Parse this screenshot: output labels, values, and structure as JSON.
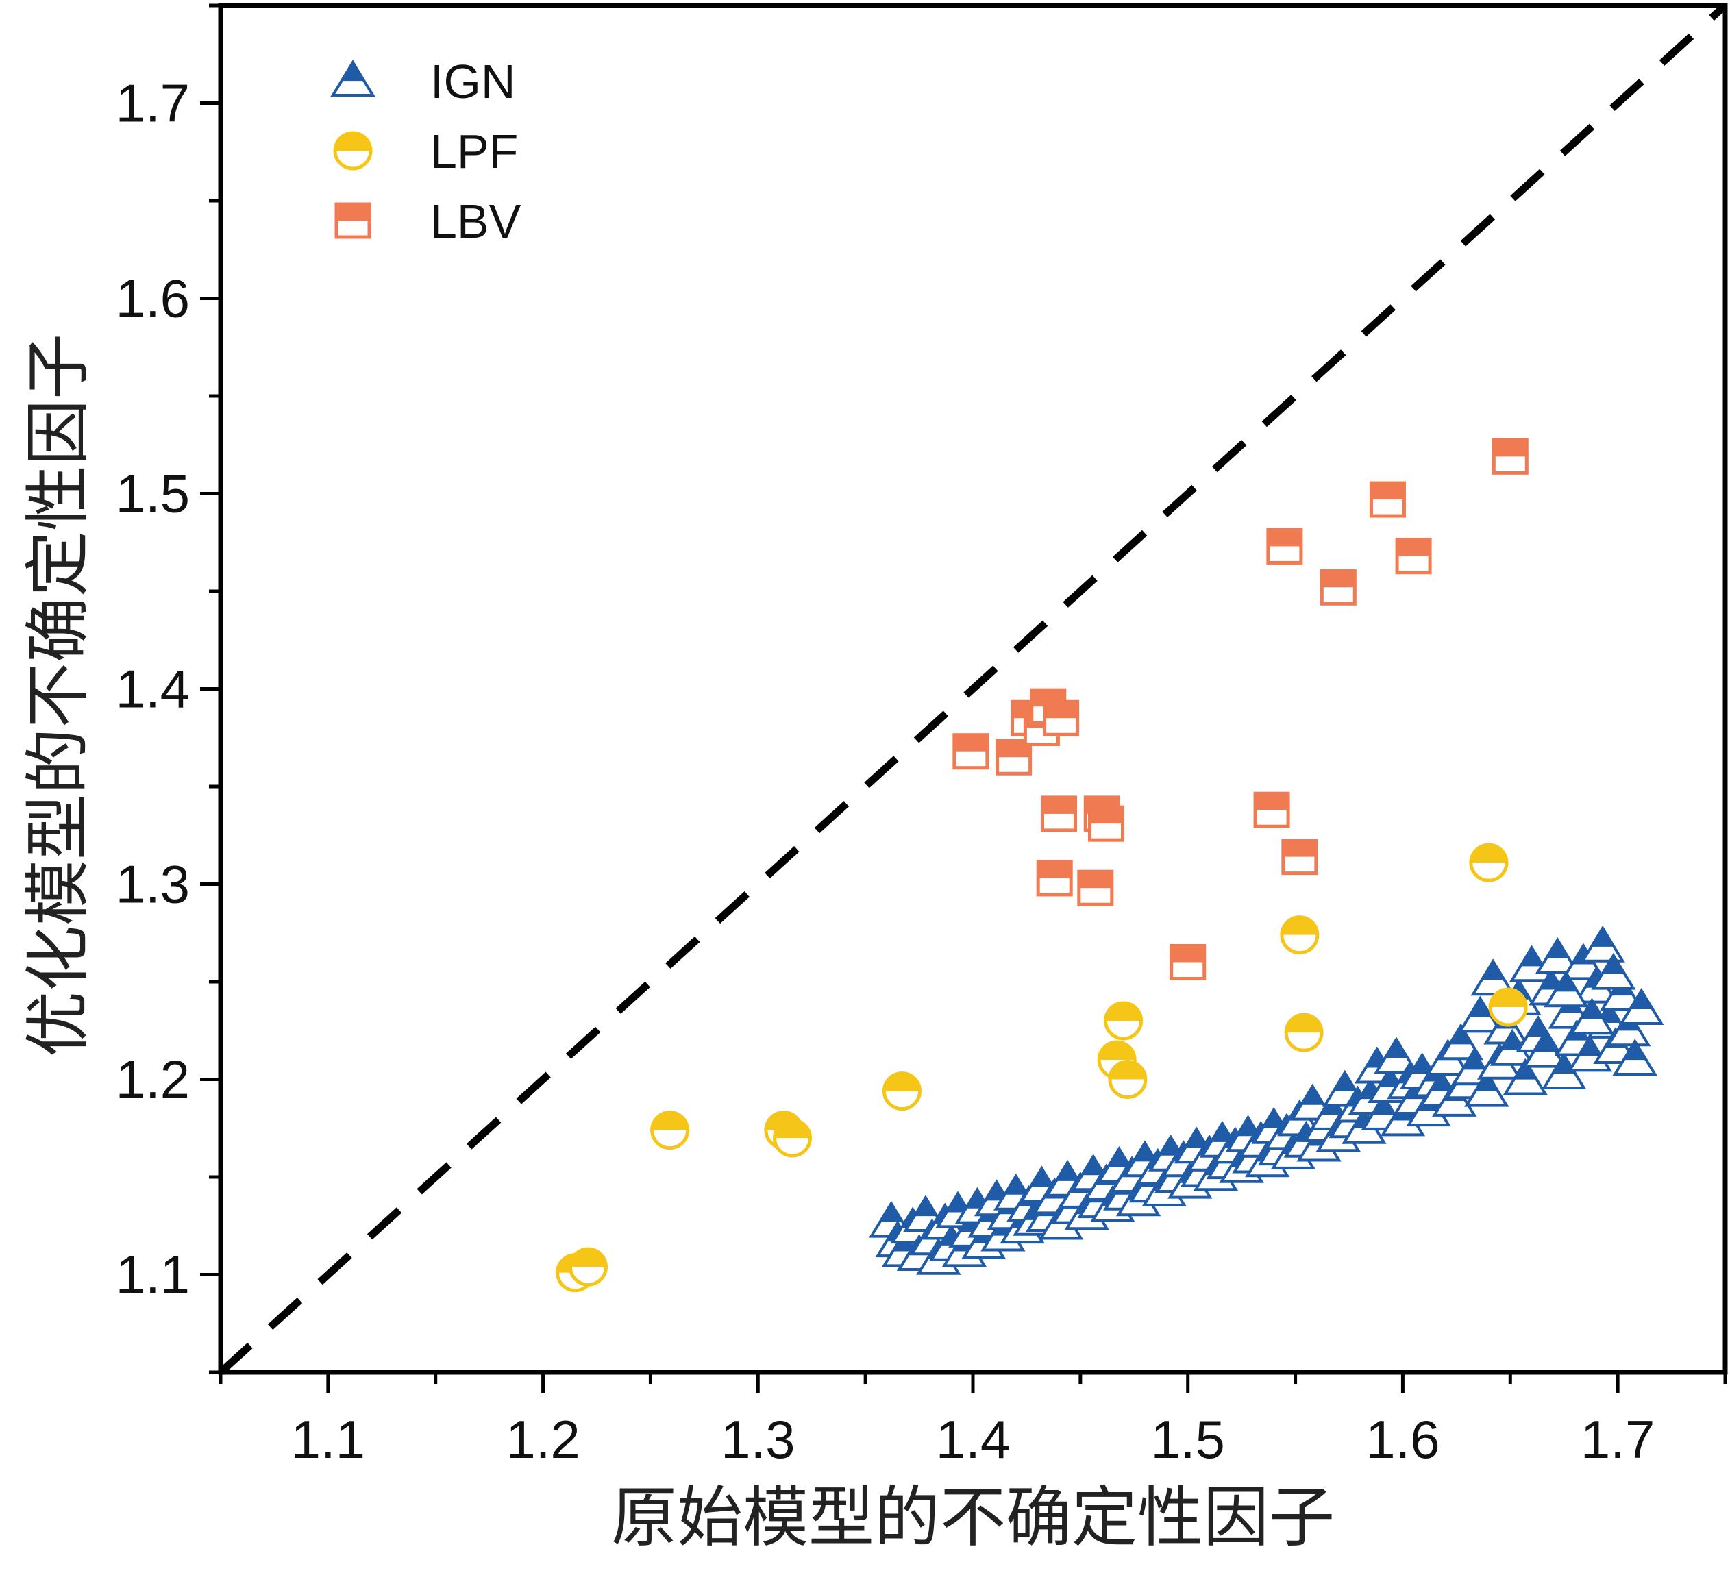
{
  "chart_data": {
    "type": "scatter",
    "title": "",
    "xlabel": "原始模型的不确定性因子",
    "ylabel": "优化模型的不确定性因子",
    "xlim": [
      1.05,
      1.75
    ],
    "ylim": [
      1.05,
      1.75
    ],
    "xticks": [
      "1.1",
      "1.2",
      "1.3",
      "1.4",
      "1.5",
      "1.6",
      "1.7"
    ],
    "yticks": [
      "1.1",
      "1.2",
      "1.3",
      "1.4",
      "1.5",
      "1.6",
      "1.7"
    ],
    "grid": false,
    "legend_position": "top-left",
    "reference_line": {
      "style": "dashed",
      "from": [
        1.05,
        1.05
      ],
      "to": [
        1.75,
        1.75
      ],
      "color": "#000000"
    },
    "series": [
      {
        "name": "IGN",
        "marker": "triangle",
        "color": "#1f5ba6",
        "points": [
          [
            1.362,
            1.127
          ],
          [
            1.365,
            1.117
          ],
          [
            1.368,
            1.112
          ],
          [
            1.372,
            1.124
          ],
          [
            1.375,
            1.11
          ],
          [
            1.378,
            1.13
          ],
          [
            1.381,
            1.118
          ],
          [
            1.384,
            1.108
          ],
          [
            1.387,
            1.126
          ],
          [
            1.39,
            1.115
          ],
          [
            1.393,
            1.132
          ],
          [
            1.396,
            1.112
          ],
          [
            1.399,
            1.122
          ],
          [
            1.402,
            1.134
          ],
          [
            1.405,
            1.116
          ],
          [
            1.408,
            1.127
          ],
          [
            1.411,
            1.138
          ],
          [
            1.414,
            1.12
          ],
          [
            1.417,
            1.131
          ],
          [
            1.42,
            1.141
          ],
          [
            1.423,
            1.124
          ],
          [
            1.426,
            1.135
          ],
          [
            1.429,
            1.128
          ],
          [
            1.432,
            1.145
          ],
          [
            1.435,
            1.13
          ],
          [
            1.438,
            1.139
          ],
          [
            1.441,
            1.126
          ],
          [
            1.444,
            1.148
          ],
          [
            1.447,
            1.134
          ],
          [
            1.45,
            1.142
          ],
          [
            1.453,
            1.131
          ],
          [
            1.456,
            1.151
          ],
          [
            1.459,
            1.137
          ],
          [
            1.462,
            1.146
          ],
          [
            1.465,
            1.135
          ],
          [
            1.468,
            1.155
          ],
          [
            1.471,
            1.141
          ],
          [
            1.474,
            1.15
          ],
          [
            1.477,
            1.138
          ],
          [
            1.48,
            1.158
          ],
          [
            1.483,
            1.145
          ],
          [
            1.486,
            1.154
          ],
          [
            1.489,
            1.143
          ],
          [
            1.492,
            1.161
          ],
          [
            1.495,
            1.15
          ],
          [
            1.498,
            1.158
          ],
          [
            1.501,
            1.147
          ],
          [
            1.504,
            1.165
          ],
          [
            1.507,
            1.153
          ],
          [
            1.51,
            1.161
          ],
          [
            1.513,
            1.151
          ],
          [
            1.516,
            1.168
          ],
          [
            1.519,
            1.157
          ],
          [
            1.522,
            1.165
          ],
          [
            1.525,
            1.155
          ],
          [
            1.528,
            1.171
          ],
          [
            1.531,
            1.16
          ],
          [
            1.534,
            1.168
          ],
          [
            1.537,
            1.158
          ],
          [
            1.54,
            1.175
          ],
          [
            1.543,
            1.164
          ],
          [
            1.546,
            1.172
          ],
          [
            1.549,
            1.162
          ],
          [
            1.552,
            1.179
          ],
          [
            1.555,
            1.168
          ],
          [
            1.558,
            1.187
          ],
          [
            1.561,
            1.166
          ],
          [
            1.564,
            1.176
          ],
          [
            1.567,
            1.182
          ],
          [
            1.57,
            1.171
          ],
          [
            1.573,
            1.194
          ],
          [
            1.576,
            1.178
          ],
          [
            1.579,
            1.186
          ],
          [
            1.582,
            1.175
          ],
          [
            1.585,
            1.19
          ],
          [
            1.588,
            1.206
          ],
          [
            1.591,
            1.182
          ],
          [
            1.594,
            1.196
          ],
          [
            1.597,
            1.211
          ],
          [
            1.6,
            1.179
          ],
          [
            1.603,
            1.198
          ],
          [
            1.606,
            1.19
          ],
          [
            1.609,
            1.203
          ],
          [
            1.612,
            1.184
          ],
          [
            1.615,
            1.199
          ],
          [
            1.618,
            1.194
          ],
          [
            1.621,
            1.21
          ],
          [
            1.624,
            1.189
          ],
          [
            1.627,
            1.218
          ],
          [
            1.63,
            1.198
          ],
          [
            1.633,
            1.205
          ],
          [
            1.636,
            1.232
          ],
          [
            1.639,
            1.194
          ],
          [
            1.642,
            1.251
          ],
          [
            1.645,
            1.208
          ],
          [
            1.648,
            1.226
          ],
          [
            1.651,
            1.215
          ],
          [
            1.654,
            1.241
          ],
          [
            1.657,
            1.2
          ],
          [
            1.66,
            1.258
          ],
          [
            1.663,
            1.222
          ],
          [
            1.666,
            1.214
          ],
          [
            1.669,
            1.246
          ],
          [
            1.672,
            1.262
          ],
          [
            1.675,
            1.203
          ],
          [
            1.678,
            1.234
          ],
          [
            1.681,
            1.22
          ],
          [
            1.684,
            1.259
          ],
          [
            1.687,
            1.212
          ],
          [
            1.69,
            1.247
          ],
          [
            1.693,
            1.268
          ],
          [
            1.696,
            1.229
          ],
          [
            1.699,
            1.216
          ],
          [
            1.702,
            1.243
          ],
          [
            1.705,
            1.225
          ],
          [
            1.708,
            1.21
          ],
          [
            1.711,
            1.236
          ],
          [
            1.698,
            1.254
          ],
          [
            1.688,
            1.231
          ],
          [
            1.676,
            1.245
          ]
        ]
      },
      {
        "name": "LPF",
        "marker": "circle",
        "color": "#f5c518",
        "points": [
          [
            1.215,
            1.101
          ],
          [
            1.221,
            1.104
          ],
          [
            1.259,
            1.174
          ],
          [
            1.312,
            1.174
          ],
          [
            1.316,
            1.17
          ],
          [
            1.367,
            1.194
          ],
          [
            1.467,
            1.21
          ],
          [
            1.47,
            1.23
          ],
          [
            1.472,
            1.2
          ],
          [
            1.552,
            1.274
          ],
          [
            1.554,
            1.224
          ],
          [
            1.64,
            1.311
          ],
          [
            1.649,
            1.237
          ]
        ]
      },
      {
        "name": "LBV",
        "marker": "square",
        "color": "#f07a52",
        "points": [
          [
            1.399,
            1.368
          ],
          [
            1.419,
            1.365
          ],
          [
            1.426,
            1.385
          ],
          [
            1.432,
            1.38
          ],
          [
            1.435,
            1.391
          ],
          [
            1.441,
            1.385
          ],
          [
            1.44,
            1.336
          ],
          [
            1.438,
            1.303
          ],
          [
            1.46,
            1.336
          ],
          [
            1.462,
            1.331
          ],
          [
            1.457,
            1.298
          ],
          [
            1.5,
            1.26
          ],
          [
            1.539,
            1.338
          ],
          [
            1.545,
            1.473
          ],
          [
            1.552,
            1.314
          ],
          [
            1.57,
            1.452
          ],
          [
            1.593,
            1.497
          ],
          [
            1.605,
            1.468
          ],
          [
            1.65,
            1.519
          ]
        ]
      }
    ]
  }
}
